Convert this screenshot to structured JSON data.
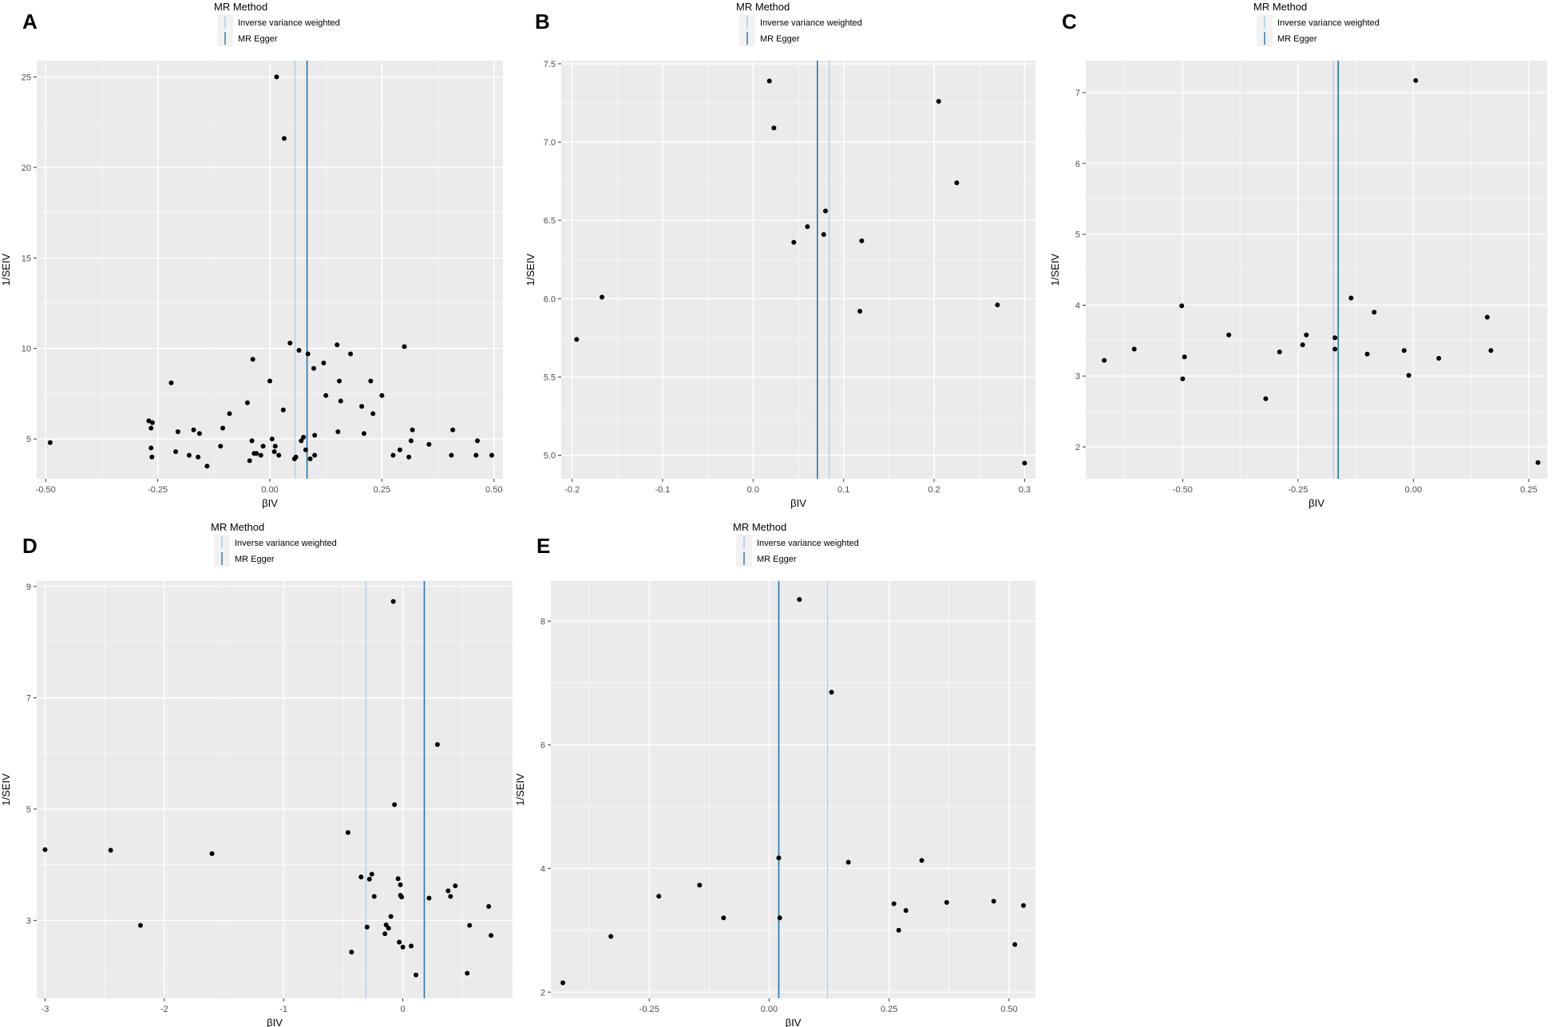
{
  "figure": {
    "panel_labels": [
      "A",
      "B",
      "C",
      "D",
      "E"
    ]
  },
  "colors": {
    "panel_bg": "#ebebeb",
    "grid": "#ffffff",
    "ivw": "#a6cee3",
    "egger": "#1f78b4",
    "point": "#000000"
  },
  "chart_data": [
    {
      "id": "A",
      "type": "scatter",
      "title": "",
      "xlabel": "βIV",
      "ylabel": "1/SEIV",
      "xlim": [
        -0.52,
        0.52
      ],
      "ylim": [
        2.8,
        25.9
      ],
      "xticks": [
        -0.5,
        -0.25,
        0.0,
        0.25,
        0.5
      ],
      "xtick_labels": [
        "-0.50",
        "-0.25",
        "0.00",
        "0.25",
        "0.50"
      ],
      "yticks": [
        5,
        10,
        15,
        20,
        25
      ],
      "ytick_labels": [
        "5",
        "10",
        "15",
        "20",
        "25"
      ],
      "legend": {
        "title": "MR Method",
        "entries": [
          "Inverse variance weighted",
          "MR Egger"
        ],
        "position": "top"
      },
      "lines": [
        {
          "method": "Inverse variance weighted",
          "x": 0.056
        },
        {
          "method": "MR Egger",
          "x": 0.083
        }
      ],
      "points": [
        [
          0.015,
          25.0
        ],
        [
          0.032,
          21.6
        ],
        [
          -0.49,
          4.8
        ],
        [
          -0.27,
          6.0
        ],
        [
          -0.265,
          5.6
        ],
        [
          -0.265,
          4.5
        ],
        [
          -0.263,
          4.0
        ],
        [
          -0.262,
          5.9
        ],
        [
          -0.22,
          8.1
        ],
        [
          -0.21,
          4.3
        ],
        [
          -0.205,
          5.4
        ],
        [
          -0.18,
          4.1
        ],
        [
          -0.17,
          5.5
        ],
        [
          -0.16,
          4.0
        ],
        [
          -0.157,
          5.3
        ],
        [
          -0.14,
          3.5
        ],
        [
          -0.11,
          4.6
        ],
        [
          -0.105,
          5.6
        ],
        [
          -0.09,
          6.4
        ],
        [
          -0.05,
          7.0
        ],
        [
          -0.045,
          3.8
        ],
        [
          -0.04,
          4.9
        ],
        [
          -0.038,
          9.4
        ],
        [
          -0.035,
          4.2
        ],
        [
          -0.03,
          4.2
        ],
        [
          -0.02,
          4.1
        ],
        [
          -0.015,
          4.6
        ],
        [
          0.0,
          8.2
        ],
        [
          0.005,
          5.0
        ],
        [
          0.01,
          4.3
        ],
        [
          0.012,
          4.6
        ],
        [
          0.02,
          4.1
        ],
        [
          0.03,
          6.6
        ],
        [
          0.045,
          10.3
        ],
        [
          0.055,
          3.9
        ],
        [
          0.058,
          4.0
        ],
        [
          0.065,
          9.9
        ],
        [
          0.07,
          4.9
        ],
        [
          0.075,
          5.1
        ],
        [
          0.08,
          4.4
        ],
        [
          0.085,
          9.7
        ],
        [
          0.09,
          3.9
        ],
        [
          0.098,
          8.9
        ],
        [
          0.1,
          4.1
        ],
        [
          0.1,
          5.2
        ],
        [
          0.12,
          9.2
        ],
        [
          0.125,
          7.4
        ],
        [
          0.15,
          10.2
        ],
        [
          0.152,
          5.4
        ],
        [
          0.155,
          8.2
        ],
        [
          0.158,
          7.1
        ],
        [
          0.18,
          9.7
        ],
        [
          0.205,
          6.8
        ],
        [
          0.21,
          5.3
        ],
        [
          0.225,
          8.2
        ],
        [
          0.23,
          6.4
        ],
        [
          0.25,
          7.4
        ],
        [
          0.275,
          4.1
        ],
        [
          0.29,
          4.4
        ],
        [
          0.3,
          10.1
        ],
        [
          0.31,
          4.0
        ],
        [
          0.315,
          4.9
        ],
        [
          0.318,
          5.5
        ],
        [
          0.355,
          4.7
        ],
        [
          0.405,
          4.1
        ],
        [
          0.408,
          5.5
        ],
        [
          0.46,
          4.1
        ],
        [
          0.463,
          4.9
        ],
        [
          0.495,
          4.1
        ]
      ]
    },
    {
      "id": "B",
      "type": "scatter",
      "title": "",
      "xlabel": "βIV",
      "ylabel": "1/SEIV",
      "xlim": [
        -0.212,
        0.312
      ],
      "ylim": [
        4.85,
        7.52
      ],
      "xticks": [
        -0.2,
        -0.1,
        0.0,
        0.1,
        0.2,
        0.3
      ],
      "xtick_labels": [
        "-0.2",
        "-0.1",
        "0.0",
        "0.1",
        "0.2",
        "0.3"
      ],
      "yticks": [
        5.0,
        5.5,
        6.0,
        6.5,
        7.0,
        7.5
      ],
      "ytick_labels": [
        "5.0",
        "5.5",
        "6.0",
        "6.5",
        "7.0",
        "7.5"
      ],
      "legend": {
        "title": "MR Method",
        "entries": [
          "Inverse variance weighted",
          "MR Egger"
        ],
        "position": "top"
      },
      "lines": [
        {
          "method": "Inverse variance weighted",
          "x": 0.084
        },
        {
          "method": "MR Egger",
          "x": 0.071
        }
      ],
      "points": [
        [
          -0.195,
          5.74
        ],
        [
          -0.167,
          6.01
        ],
        [
          0.018,
          7.39
        ],
        [
          0.023,
          7.09
        ],
        [
          0.045,
          6.36
        ],
        [
          0.06,
          6.46
        ],
        [
          0.078,
          6.41
        ],
        [
          0.08,
          6.56
        ],
        [
          0.118,
          5.92
        ],
        [
          0.12,
          6.37
        ],
        [
          0.205,
          7.26
        ],
        [
          0.225,
          6.74
        ],
        [
          0.27,
          5.96
        ],
        [
          0.3,
          4.95
        ]
      ]
    },
    {
      "id": "C",
      "type": "scatter",
      "title": "",
      "xlabel": "βIV",
      "ylabel": "1/SEIV",
      "xlim": [
        -0.71,
        0.29
      ],
      "ylim": [
        1.55,
        7.45
      ],
      "xticks": [
        -0.5,
        -0.25,
        0.0,
        0.25
      ],
      "xtick_labels": [
        "-0.50",
        "-0.25",
        "0.00",
        "0.25"
      ],
      "yticks": [
        2,
        3,
        4,
        5,
        6,
        7
      ],
      "ytick_labels": [
        "2",
        "3",
        "4",
        "5",
        "6",
        "7"
      ],
      "legend": {
        "title": "MR Method",
        "entries": [
          "Inverse variance weighted",
          "MR Egger"
        ],
        "position": "top"
      },
      "lines": [
        {
          "method": "Inverse variance weighted",
          "x": -0.173
        },
        {
          "method": "MR Egger",
          "x": -0.163
        }
      ],
      "points": [
        [
          -0.67,
          3.22
        ],
        [
          -0.605,
          3.38
        ],
        [
          -0.502,
          3.99
        ],
        [
          -0.5,
          2.96
        ],
        [
          -0.496,
          3.27
        ],
        [
          -0.4,
          3.58
        ],
        [
          -0.32,
          2.68
        ],
        [
          -0.29,
          3.34
        ],
        [
          -0.24,
          3.44
        ],
        [
          -0.232,
          3.58
        ],
        [
          -0.17,
          3.54
        ],
        [
          -0.17,
          3.38
        ],
        [
          -0.135,
          4.1
        ],
        [
          -0.1,
          3.31
        ],
        [
          -0.085,
          3.9
        ],
        [
          -0.02,
          3.36
        ],
        [
          -0.01,
          3.01
        ],
        [
          0.005,
          7.17
        ],
        [
          0.055,
          3.25
        ],
        [
          0.16,
          3.83
        ],
        [
          0.168,
          3.36
        ],
        [
          0.27,
          1.78
        ]
      ]
    },
    {
      "id": "D",
      "type": "scatter",
      "title": "",
      "xlabel": "βIV",
      "ylabel": "1/SEIV",
      "xlim": [
        -3.07,
        0.92
      ],
      "ylim": [
        1.6,
        9.1
      ],
      "xticks": [
        -3,
        -2,
        -1,
        0
      ],
      "xtick_labels": [
        "-3",
        "-2",
        "-1",
        "0"
      ],
      "yticks": [
        3,
        5,
        7,
        9
      ],
      "ytick_labels": [
        "3",
        "5",
        "7",
        "9"
      ],
      "legend": {
        "title": "MR Method",
        "entries": [
          "Inverse variance weighted",
          "MR Egger"
        ],
        "position": "top"
      },
      "lines": [
        {
          "method": "Inverse variance weighted",
          "x": -0.31
        },
        {
          "method": "MR Egger",
          "x": 0.18
        }
      ],
      "points": [
        [
          -3.0,
          4.27
        ],
        [
          -2.45,
          4.26
        ],
        [
          -2.2,
          2.91
        ],
        [
          -1.6,
          4.2
        ],
        [
          -0.46,
          4.58
        ],
        [
          -0.43,
          2.43
        ],
        [
          -0.35,
          3.78
        ],
        [
          -0.3,
          2.88
        ],
        [
          -0.28,
          3.74
        ],
        [
          -0.26,
          3.83
        ],
        [
          -0.24,
          3.43
        ],
        [
          -0.15,
          2.76
        ],
        [
          -0.14,
          2.92
        ],
        [
          -0.12,
          2.86
        ],
        [
          -0.1,
          3.07
        ],
        [
          -0.08,
          8.73
        ],
        [
          -0.07,
          5.08
        ],
        [
          -0.04,
          3.75
        ],
        [
          -0.03,
          2.61
        ],
        [
          -0.02,
          3.45
        ],
        [
          -0.02,
          3.64
        ],
        [
          -0.01,
          3.42
        ],
        [
          0.0,
          2.52
        ],
        [
          0.07,
          2.54
        ],
        [
          0.11,
          2.02
        ],
        [
          0.22,
          3.4
        ],
        [
          0.29,
          6.16
        ],
        [
          0.38,
          3.53
        ],
        [
          0.4,
          3.43
        ],
        [
          0.44,
          3.62
        ],
        [
          0.54,
          2.05
        ],
        [
          0.56,
          2.91
        ],
        [
          0.72,
          3.25
        ],
        [
          0.74,
          2.73
        ]
      ]
    },
    {
      "id": "E",
      "type": "scatter",
      "title": "",
      "xlabel": "βIV",
      "ylabel": "1/SEIV",
      "xlim": [
        -0.455,
        0.555
      ],
      "ylim": [
        1.9,
        8.65
      ],
      "xticks": [
        -0.25,
        0.0,
        0.25,
        0.5
      ],
      "xtick_labels": [
        "-0.25",
        "0.00",
        "0.25",
        "0.50"
      ],
      "yticks": [
        2,
        4,
        6,
        8
      ],
      "ytick_labels": [
        "2",
        "4",
        "6",
        "8"
      ],
      "legend": {
        "title": "MR Method",
        "entries": [
          "Inverse variance weighted",
          "MR Egger"
        ],
        "position": "top"
      },
      "lines": [
        {
          "method": "Inverse variance weighted",
          "x": 0.122
        },
        {
          "method": "MR Egger",
          "x": 0.02
        }
      ],
      "points": [
        [
          -0.43,
          2.15
        ],
        [
          -0.33,
          2.9
        ],
        [
          -0.23,
          3.55
        ],
        [
          -0.145,
          3.73
        ],
        [
          -0.095,
          3.2
        ],
        [
          0.02,
          4.17
        ],
        [
          0.022,
          3.2
        ],
        [
          0.063,
          8.35
        ],
        [
          0.13,
          6.85
        ],
        [
          0.165,
          4.1
        ],
        [
          0.26,
          3.43
        ],
        [
          0.27,
          3.0
        ],
        [
          0.285,
          3.32
        ],
        [
          0.318,
          4.13
        ],
        [
          0.37,
          3.45
        ],
        [
          0.468,
          3.47
        ],
        [
          0.512,
          2.77
        ],
        [
          0.53,
          3.4
        ]
      ]
    }
  ]
}
